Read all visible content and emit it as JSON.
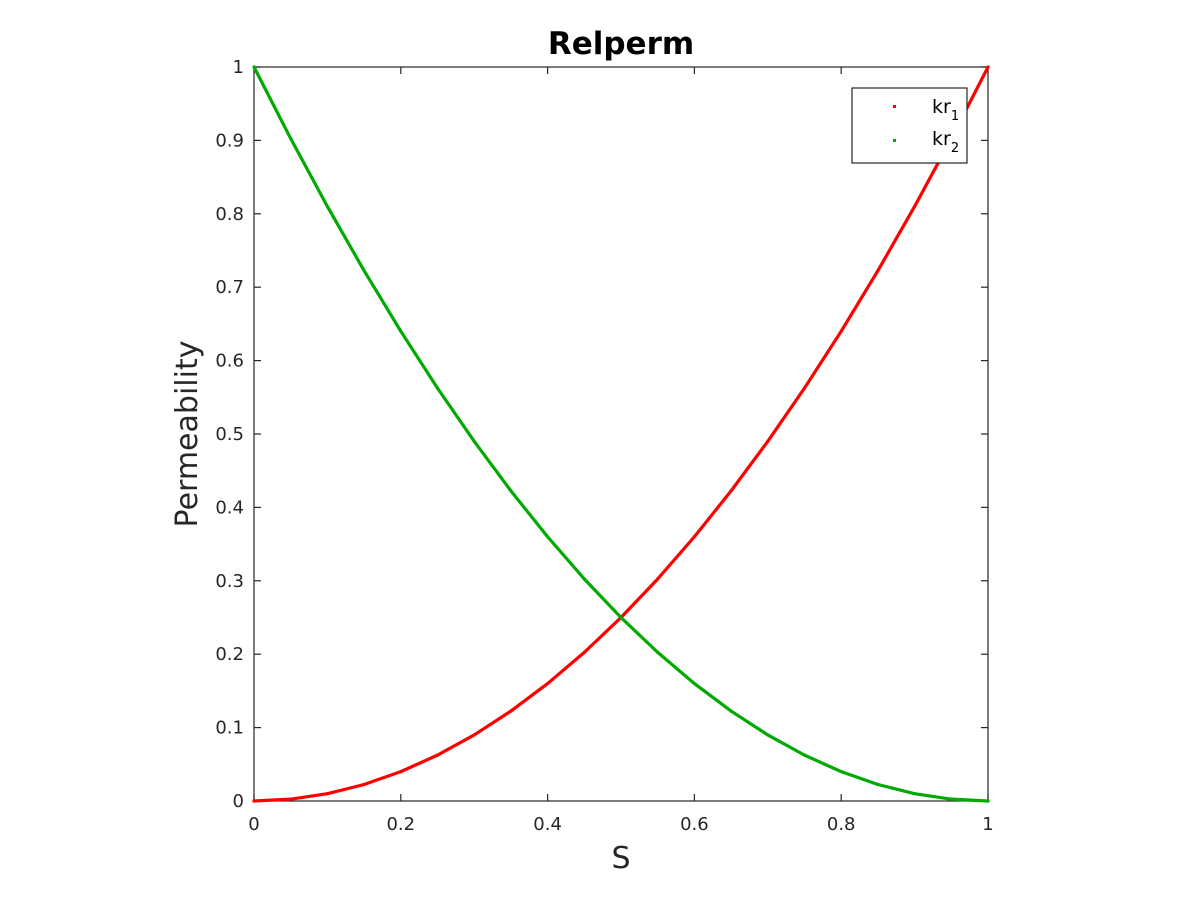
{
  "chart_data": {
    "type": "line",
    "title": "Relperm",
    "xlabel": "S",
    "ylabel": "Permeability",
    "xlim": [
      0,
      1
    ],
    "ylim": [
      0,
      1
    ],
    "xticks": [
      "0",
      "0.2",
      "0.4",
      "0.6",
      "0.8",
      "1"
    ],
    "yticks": [
      "0",
      "0.1",
      "0.2",
      "0.3",
      "0.4",
      "0.5",
      "0.6",
      "0.7",
      "0.8",
      "0.9",
      "1"
    ],
    "grid": false,
    "legend_placement": "top-right",
    "x": [
      0,
      0.05,
      0.1,
      0.15,
      0.2,
      0.25,
      0.3,
      0.35,
      0.4,
      0.45,
      0.5,
      0.55,
      0.6,
      0.65,
      0.7,
      0.75,
      0.8,
      0.85,
      0.9,
      0.95,
      1
    ],
    "series": [
      {
        "name": "kr",
        "subscript": "1",
        "color": "#ff0000",
        "values": [
          0,
          0.0025,
          0.01,
          0.0225,
          0.04,
          0.0625,
          0.09,
          0.1225,
          0.16,
          0.2025,
          0.25,
          0.3025,
          0.36,
          0.4225,
          0.49,
          0.5625,
          0.64,
          0.7225,
          0.81,
          0.9025,
          1
        ]
      },
      {
        "name": "kr",
        "subscript": "2",
        "color": "#00aa00",
        "values": [
          1,
          0.9025,
          0.81,
          0.7225,
          0.64,
          0.5625,
          0.49,
          0.4225,
          0.36,
          0.3025,
          0.25,
          0.2025,
          0.16,
          0.1225,
          0.09,
          0.0625,
          0.04,
          0.0225,
          0.01,
          0.0025,
          0
        ]
      }
    ]
  }
}
